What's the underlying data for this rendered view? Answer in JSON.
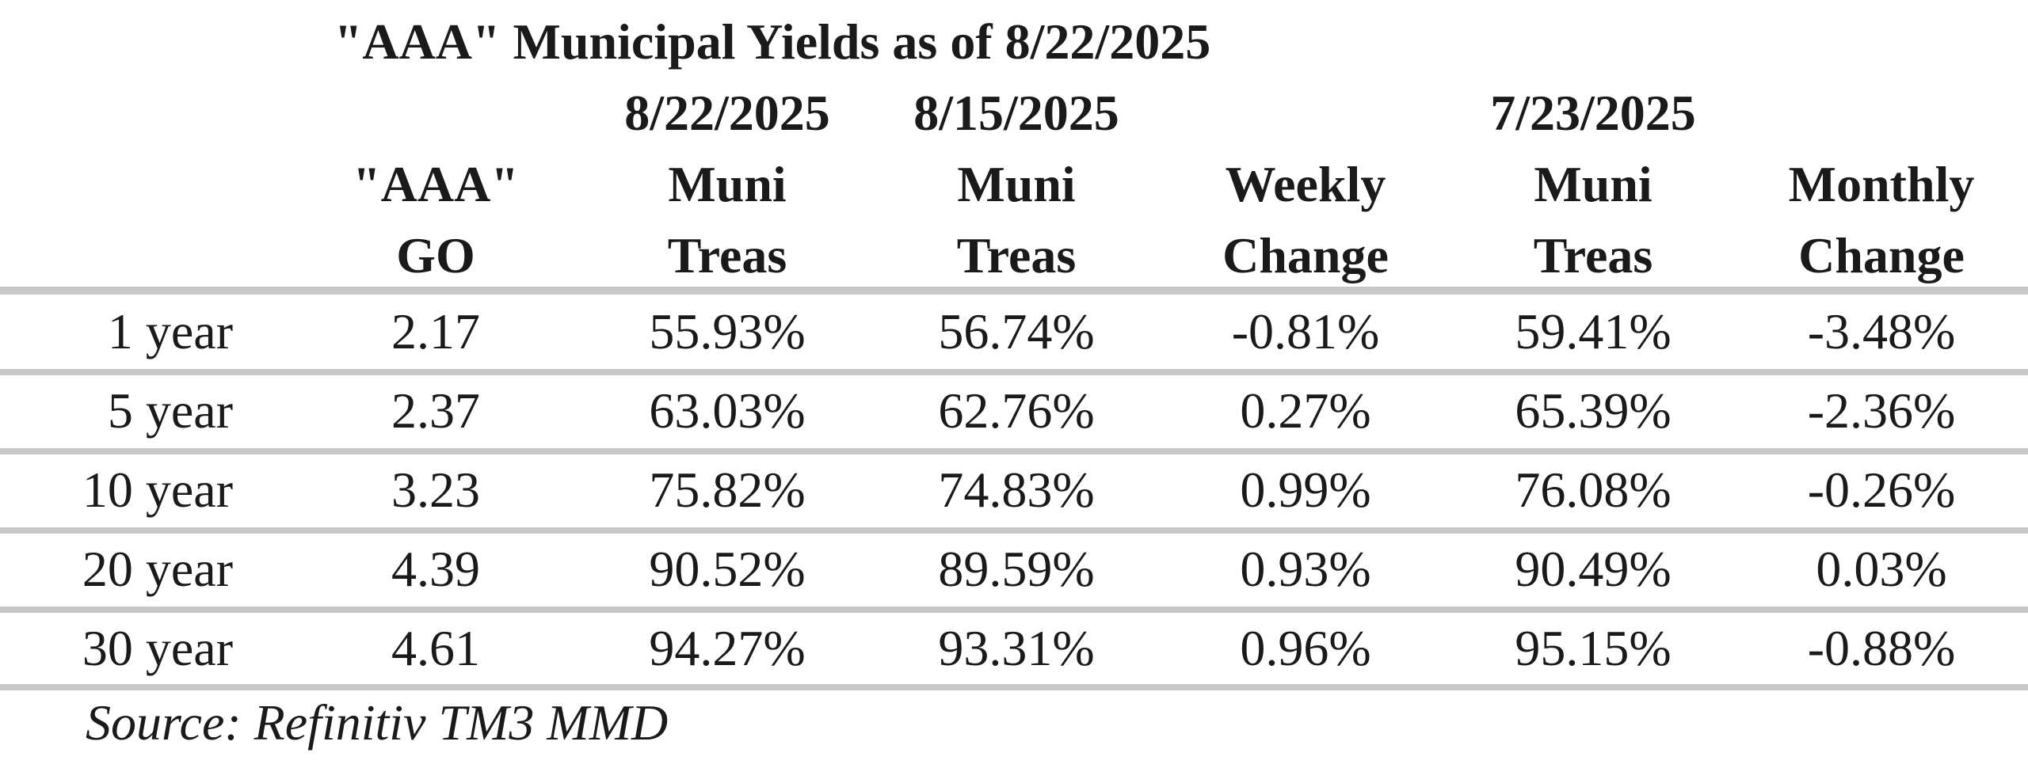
{
  "chart_data": {
    "type": "table",
    "title": "\"AAA\" Municipal Yields as of 8/22/2025",
    "columns": [
      {
        "key": "label",
        "date": "",
        "line1": "",
        "line2": ""
      },
      {
        "key": "go",
        "date": "",
        "line1": "\"AAA\"",
        "line2": "GO"
      },
      {
        "key": "mt_0822",
        "date": "8/22/2025",
        "line1": "Muni",
        "line2": "Treas"
      },
      {
        "key": "mt_0815",
        "date": "8/15/2025",
        "line1": "Muni",
        "line2": "Treas"
      },
      {
        "key": "weekly",
        "date": "",
        "line1": "Weekly",
        "line2": "Change"
      },
      {
        "key": "mt_0723",
        "date": "7/23/2025",
        "line1": "Muni",
        "line2": "Treas"
      },
      {
        "key": "monthly",
        "date": "",
        "line1": "Monthly",
        "line2": "Change"
      }
    ],
    "rows": [
      {
        "label": "1 year",
        "values": [
          "2.17",
          "55.93%",
          "56.74%",
          "-0.81%",
          "59.41%",
          "-3.48%"
        ]
      },
      {
        "label": "5 year",
        "values": [
          "2.37",
          "63.03%",
          "62.76%",
          "0.27%",
          "65.39%",
          "-2.36%"
        ]
      },
      {
        "label": "10 year",
        "values": [
          "3.23",
          "75.82%",
          "74.83%",
          "0.99%",
          "76.08%",
          "-0.26%"
        ]
      },
      {
        "label": "20 year",
        "values": [
          "4.39",
          "90.52%",
          "89.59%",
          "0.93%",
          "90.49%",
          "0.03%"
        ]
      },
      {
        "label": "30 year",
        "values": [
          "4.61",
          "94.27%",
          "93.31%",
          "0.96%",
          "95.15%",
          "-0.88%"
        ]
      }
    ],
    "source": "Source: Refinitiv TM3 MMD",
    "divider_color": "#c8c8c8"
  }
}
